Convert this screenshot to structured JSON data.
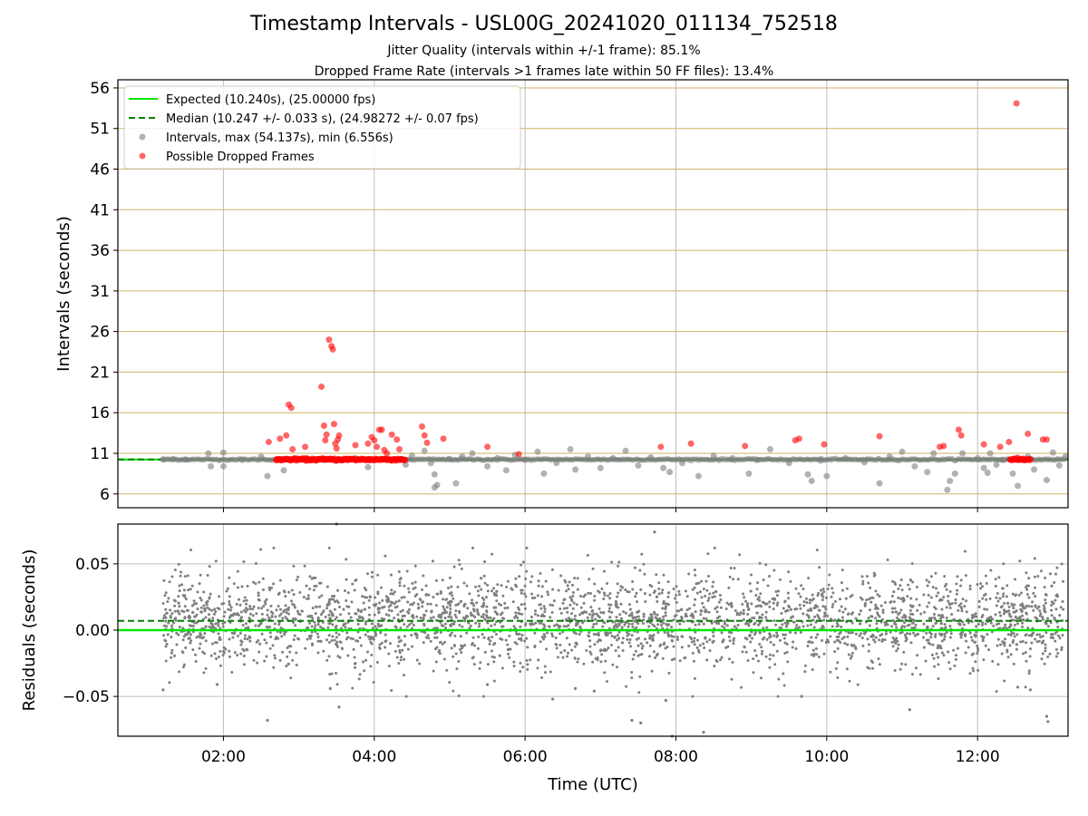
{
  "title": "Timestamp Intervals - USL00G_20241020_011134_752518",
  "subtitle1": "Jitter Quality (intervals within +/-1 frame): 85.1%",
  "subtitle2": "Dropped Frame Rate (intervals >1 frames late within 50 FF files): 13.4%",
  "colors": {
    "expected": "#00e600",
    "median": "#007f00",
    "intervals": "#7f7f7f",
    "dropped": "#ff0000",
    "hgrid_top": "#d2b265",
    "grid": "#b0b0b0"
  },
  "chart_data": [
    {
      "type": "scatter",
      "ylabel": "Intervals (seconds)",
      "xlim": [
        "00:36",
        "13:12"
      ],
      "ylim": [
        4.3,
        57
      ],
      "yticks": [
        "6",
        "11",
        "16",
        "21",
        "26",
        "31",
        "36",
        "41",
        "46",
        "51",
        "56"
      ],
      "ytick_values": [
        6,
        11,
        16,
        21,
        26,
        31,
        36,
        41,
        46,
        51,
        56
      ],
      "grid": true,
      "legend_placement": "top-left",
      "legend": [
        "Expected (10.240s), (25.00000 fps)",
        "Median (10.247 +/- 0.033 s), (24.98272 +/- 0.07 fps)",
        "Intervals, max (54.137s), min (6.556s)",
        "Possible Dropped Frames"
      ],
      "expected_interval": 10.24,
      "median_interval": 10.247,
      "series": [
        {
          "name": "Intervals, max (54.137s), min (6.556s)",
          "points": [
            [
              "01:12",
              10.24
            ],
            [
              "01:20",
              10.3
            ],
            [
              "01:30",
              10.25
            ],
            [
              "01:48",
              11.0
            ],
            [
              "01:50",
              9.4
            ],
            [
              "02:00",
              11.1
            ],
            [
              "02:00",
              9.4
            ],
            [
              "02:15",
              10.2
            ],
            [
              "02:30",
              10.6
            ],
            [
              "02:35",
              8.2
            ],
            [
              "02:48",
              8.9
            ],
            [
              "02:55",
              10.2
            ],
            [
              "03:20",
              10.2
            ],
            [
              "03:30",
              10.1
            ],
            [
              "03:45",
              10.4
            ],
            [
              "03:55",
              9.3
            ],
            [
              "04:10",
              10.2
            ],
            [
              "04:25",
              9.6
            ],
            [
              "04:30",
              10.7
            ],
            [
              "04:40",
              11.3
            ],
            [
              "04:45",
              9.8
            ],
            [
              "04:48",
              8.4
            ],
            [
              "04:50",
              7.1
            ],
            [
              "04:48",
              6.8
            ],
            [
              "05:00",
              10.3
            ],
            [
              "05:05",
              7.3
            ],
            [
              "05:10",
              10.6
            ],
            [
              "05:18",
              11.0
            ],
            [
              "05:30",
              9.4
            ],
            [
              "05:38",
              10.4
            ],
            [
              "05:45",
              8.9
            ],
            [
              "05:52",
              10.8
            ],
            [
              "06:00",
              10.2
            ],
            [
              "06:10",
              11.2
            ],
            [
              "06:15",
              8.5
            ],
            [
              "06:25",
              9.8
            ],
            [
              "06:36",
              11.5
            ],
            [
              "06:40",
              9.0
            ],
            [
              "06:50",
              10.6
            ],
            [
              "07:00",
              9.2
            ],
            [
              "07:10",
              10.4
            ],
            [
              "07:20",
              11.3
            ],
            [
              "07:30",
              9.5
            ],
            [
              "07:40",
              10.5
            ],
            [
              "07:50",
              9.2
            ],
            [
              "07:55",
              8.7
            ],
            [
              "08:05",
              9.8
            ],
            [
              "08:18",
              8.2
            ],
            [
              "08:30",
              10.7
            ],
            [
              "08:45",
              10.4
            ],
            [
              "08:58",
              8.5
            ],
            [
              "09:05",
              10.2
            ],
            [
              "09:15",
              11.5
            ],
            [
              "09:30",
              9.8
            ],
            [
              "09:45",
              8.4
            ],
            [
              "09:48",
              7.6
            ],
            [
              "09:55",
              10.1
            ],
            [
              "10:00",
              8.2
            ],
            [
              "10:15",
              10.4
            ],
            [
              "10:30",
              9.9
            ],
            [
              "10:42",
              7.3
            ],
            [
              "10:50",
              10.6
            ],
            [
              "11:00",
              11.2
            ],
            [
              "11:10",
              9.4
            ],
            [
              "11:20",
              8.7
            ],
            [
              "11:25",
              11.0
            ],
            [
              "11:36",
              6.5
            ],
            [
              "11:38",
              7.6
            ],
            [
              "11:42",
              8.5
            ],
            [
              "11:48",
              11.0
            ],
            [
              "12:00",
              10.4
            ],
            [
              "12:05",
              9.2
            ],
            [
              "12:08",
              8.6
            ],
            [
              "12:10",
              11.0
            ],
            [
              "12:15",
              9.6
            ],
            [
              "12:20",
              10.2
            ],
            [
              "12:28",
              8.5
            ],
            [
              "12:32",
              7.0
            ],
            [
              "12:40",
              10.6
            ],
            [
              "12:45",
              9.0
            ],
            [
              "12:55",
              7.7
            ],
            [
              "13:00",
              11.1
            ],
            [
              "13:05",
              9.5
            ],
            [
              "13:10",
              10.6
            ]
          ]
        },
        {
          "name": "Possible Dropped Frames",
          "points": [
            [
              "02:36",
              12.4
            ],
            [
              "02:45",
              12.8
            ],
            [
              "02:50",
              13.2
            ],
            [
              "02:52",
              17.0
            ],
            [
              "02:54",
              16.6
            ],
            [
              "02:55",
              11.5
            ],
            [
              "03:05",
              11.8
            ],
            [
              "03:18",
              19.2
            ],
            [
              "03:20",
              14.4
            ],
            [
              "03:21",
              12.6
            ],
            [
              "03:22",
              13.3
            ],
            [
              "03:24",
              25.0
            ],
            [
              "03:26",
              24.2
            ],
            [
              "03:27",
              23.8
            ],
            [
              "03:28",
              14.6
            ],
            [
              "03:29",
              12.2
            ],
            [
              "03:30",
              11.6
            ],
            [
              "03:31",
              12.7
            ],
            [
              "03:32",
              13.2
            ],
            [
              "03:45",
              12.0
            ],
            [
              "03:55",
              12.2
            ],
            [
              "03:58",
              13.0
            ],
            [
              "04:00",
              12.6
            ],
            [
              "04:02",
              11.8
            ],
            [
              "04:04",
              13.9
            ],
            [
              "04:06",
              13.9
            ],
            [
              "04:08",
              11.4
            ],
            [
              "04:10",
              11.0
            ],
            [
              "04:14",
              13.3
            ],
            [
              "04:18",
              12.7
            ],
            [
              "04:20",
              11.5
            ],
            [
              "04:38",
              14.3
            ],
            [
              "04:40",
              13.2
            ],
            [
              "04:42",
              12.3
            ],
            [
              "04:55",
              12.8
            ],
            [
              "05:30",
              11.8
            ],
            [
              "05:55",
              10.9
            ],
            [
              "07:48",
              11.8
            ],
            [
              "08:12",
              12.2
            ],
            [
              "08:55",
              11.9
            ],
            [
              "09:35",
              12.6
            ],
            [
              "09:38",
              12.8
            ],
            [
              "09:58",
              12.1
            ],
            [
              "10:42",
              13.1
            ],
            [
              "11:30",
              11.8
            ],
            [
              "11:33",
              11.9
            ],
            [
              "11:45",
              13.9
            ],
            [
              "11:47",
              13.2
            ],
            [
              "12:05",
              12.1
            ],
            [
              "12:18",
              11.8
            ],
            [
              "12:25",
              12.4
            ],
            [
              "12:31",
              54.1
            ],
            [
              "12:40",
              13.4
            ],
            [
              "12:52",
              12.7
            ],
            [
              "12:55",
              12.7
            ]
          ]
        }
      ],
      "dropped_clusters": [
        {
          "x_range": [
            "02:42",
            "04:25"
          ],
          "y": 10.24
        },
        {
          "x_range": [
            "12:26",
            "12:42"
          ],
          "y": 10.24
        }
      ]
    },
    {
      "type": "scatter",
      "xlabel": "Time (UTC)",
      "ylabel": "Residuals (seconds)",
      "xlim": [
        "00:36",
        "13:12"
      ],
      "ylim": [
        -0.08,
        0.08
      ],
      "xticks": [
        "02:00",
        "04:00",
        "06:00",
        "08:00",
        "10:00",
        "12:00"
      ],
      "yticks": [
        "−0.05",
        "0.00",
        "0.05"
      ],
      "ytick_values": [
        -0.05,
        0.0,
        0.05
      ],
      "grid": true,
      "expected_residual": 0.0,
      "median_residual": 0.007,
      "residual_spread": {
        "x_range": [
          "01:12",
          "13:10"
        ],
        "center": 0.007,
        "std": 0.018,
        "n_points": 3000
      },
      "outliers": [
        [
          "01:12",
          -0.045
        ],
        [
          "01:55",
          -0.041
        ],
        [
          "02:35",
          -0.068
        ],
        [
          "03:25",
          -0.044
        ],
        [
          "03:32",
          -0.058
        ],
        [
          "03:30",
          0.08
        ],
        [
          "05:30",
          -0.041
        ],
        [
          "06:22",
          -0.052
        ],
        [
          "06:40",
          -0.044
        ],
        [
          "06:55",
          -0.046
        ],
        [
          "07:25",
          -0.068
        ],
        [
          "07:32",
          -0.07
        ],
        [
          "07:43",
          0.074
        ],
        [
          "07:52",
          -0.053
        ],
        [
          "07:57",
          -0.08
        ],
        [
          "08:22",
          -0.077
        ],
        [
          "09:40",
          -0.05
        ],
        [
          "11:06",
          -0.06
        ],
        [
          "12:32",
          -0.043
        ],
        [
          "12:42",
          -0.045
        ],
        [
          "12:55",
          -0.065
        ],
        [
          "12:56",
          -0.069
        ]
      ]
    }
  ]
}
